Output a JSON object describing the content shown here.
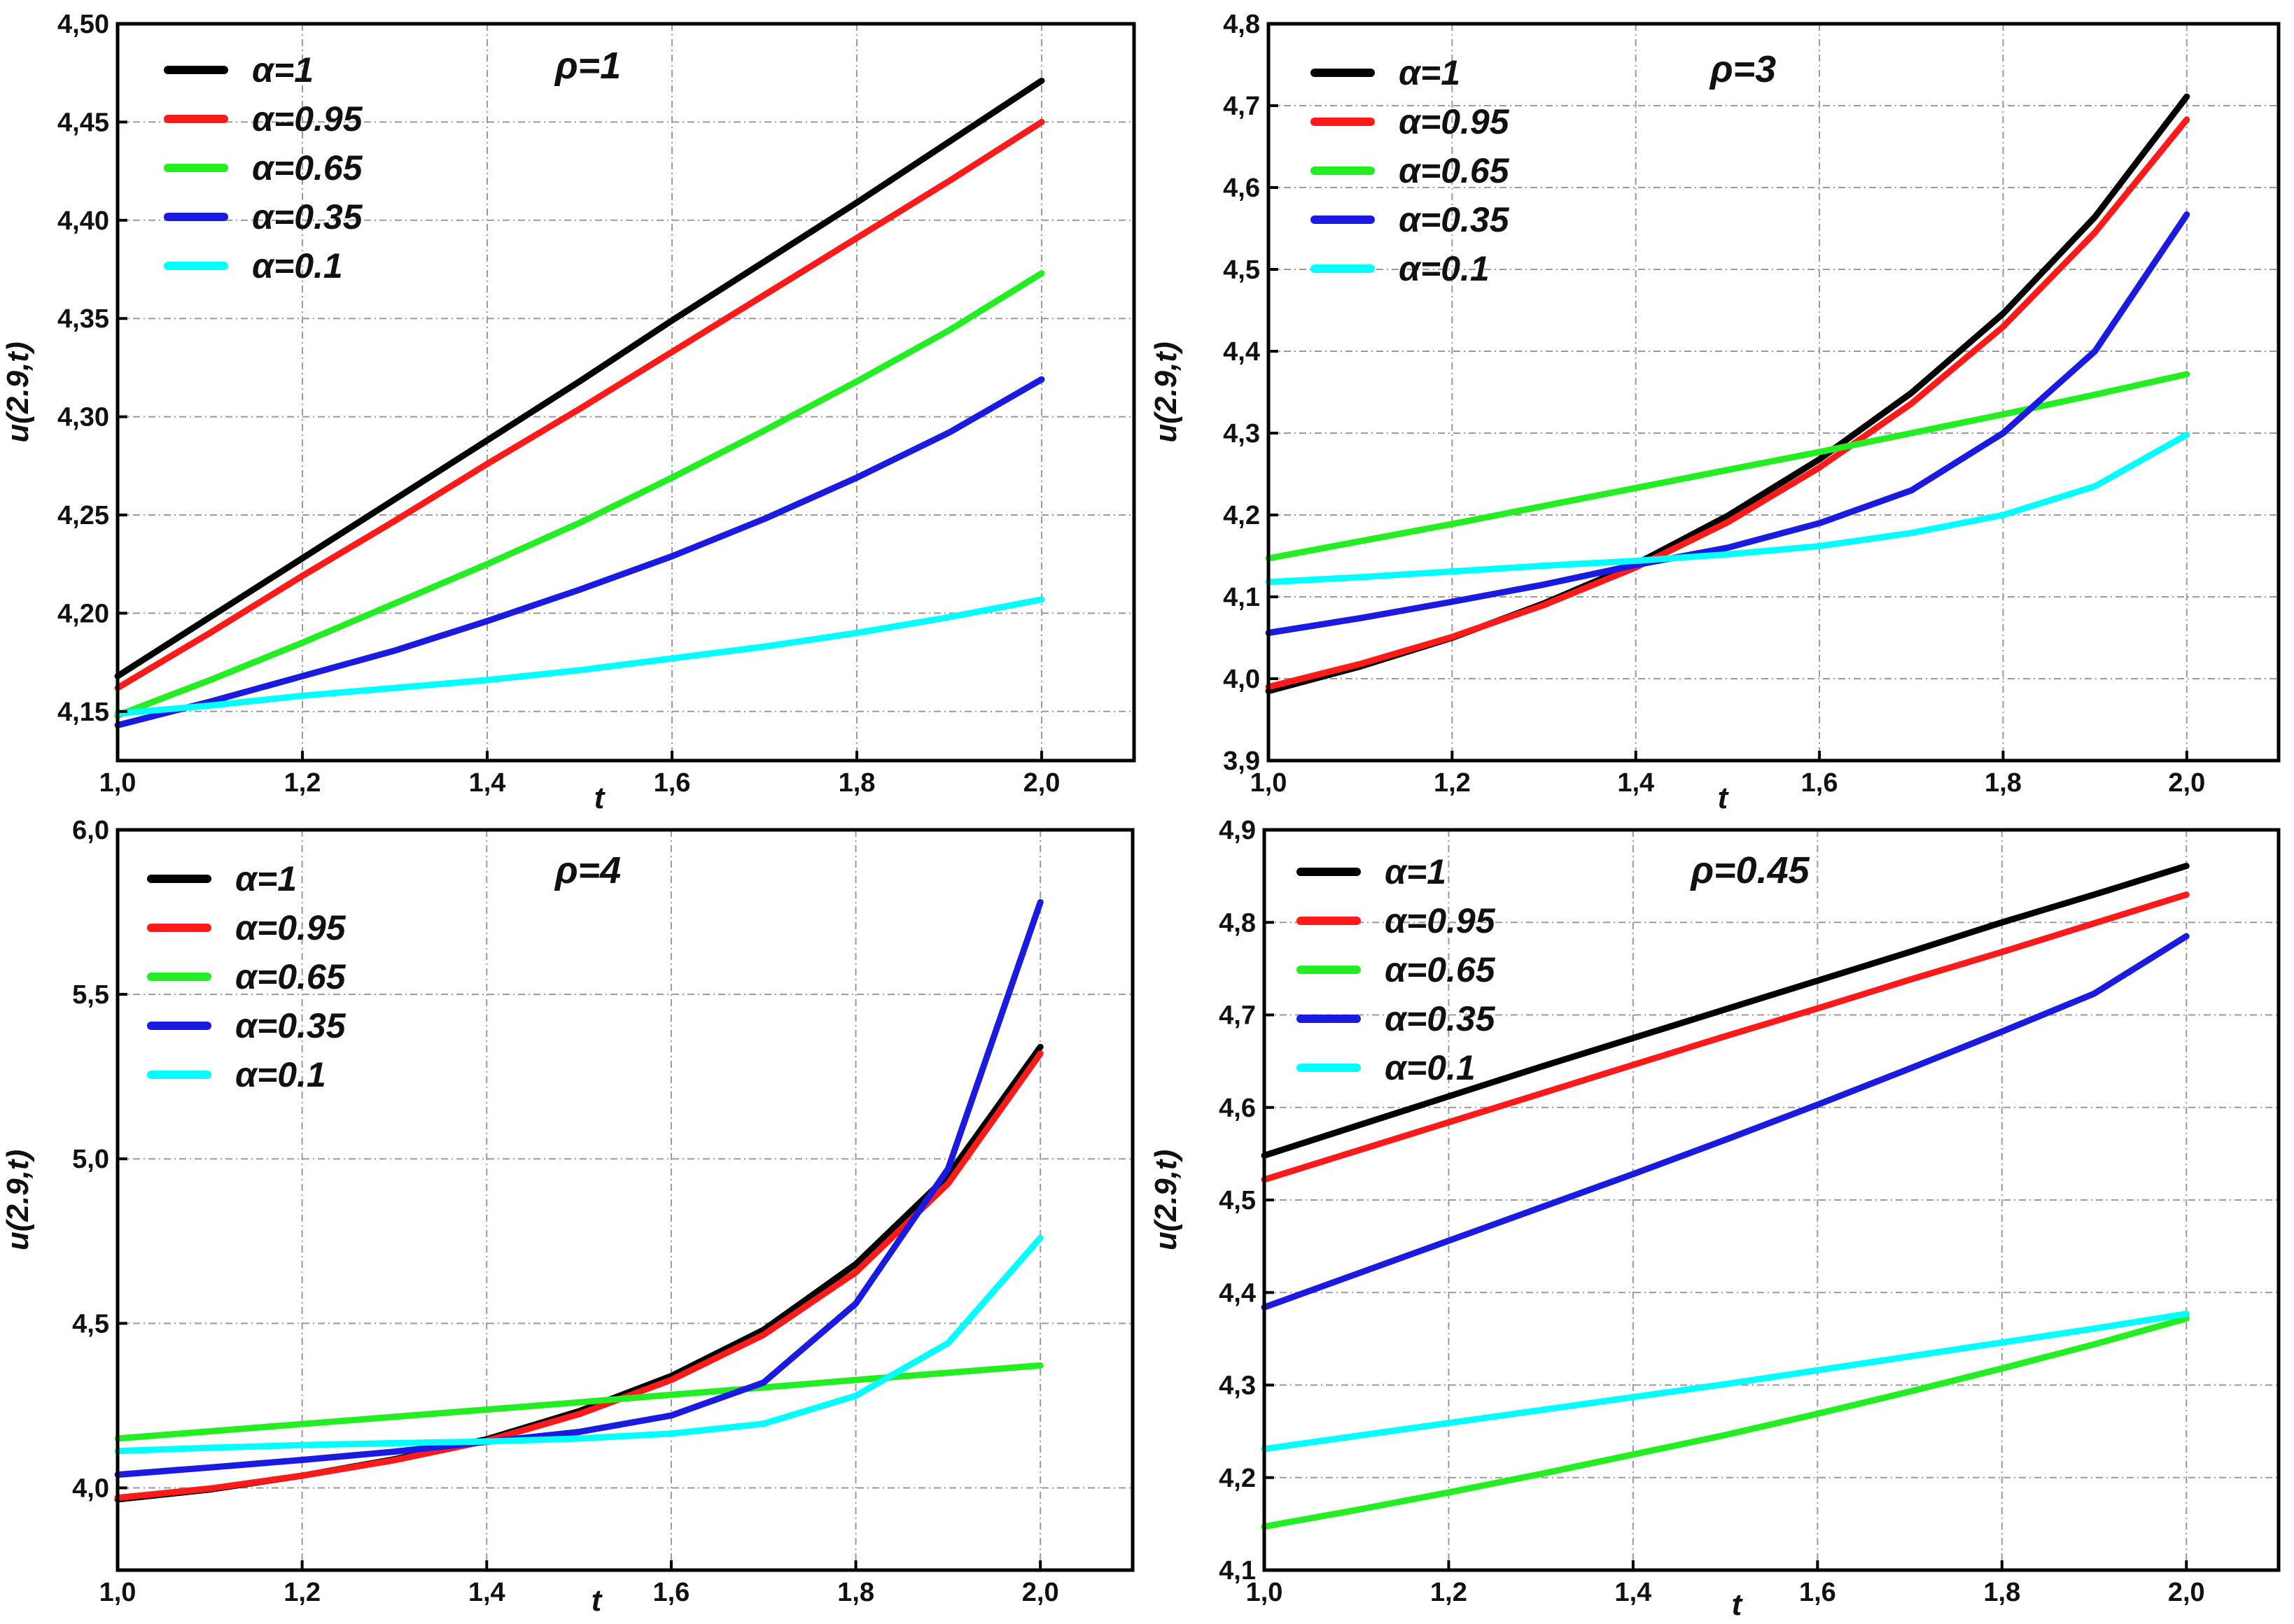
{
  "chart_data": [
    {
      "type": "line",
      "title": "ρ=1",
      "xlabel": "t",
      "ylabel": "u(2.9,t)",
      "xlim": [
        1.0,
        2.1
      ],
      "ylim": [
        4.125,
        4.5
      ],
      "xticks": [
        1.0,
        1.2,
        1.4,
        1.6,
        1.8,
        2.0
      ],
      "xtick_labels": [
        "1,0",
        "1,2",
        "1,4",
        "1,6",
        "1,8",
        "2,0"
      ],
      "yticks": [
        4.15,
        4.2,
        4.25,
        4.3,
        4.35,
        4.4,
        4.45,
        4.5
      ],
      "ytick_labels": [
        "4,15",
        "4,20",
        "4,25",
        "4,30",
        "4,35",
        "4,40",
        "4,45",
        "4,50"
      ],
      "legend_position": "top-left",
      "x": [
        1.0,
        1.1,
        1.2,
        1.3,
        1.4,
        1.5,
        1.6,
        1.7,
        1.8,
        1.9,
        2.0
      ],
      "series": [
        {
          "name": "α=1",
          "color": "#000000",
          "values": [
            4.168,
            4.198,
            4.228,
            4.258,
            4.288,
            4.318,
            4.349,
            4.379,
            4.409,
            4.44,
            4.471
          ]
        },
        {
          "name": "α=0.95",
          "color": "#ff1a1a",
          "values": [
            4.162,
            4.19,
            4.219,
            4.247,
            4.276,
            4.304,
            4.333,
            4.362,
            4.391,
            4.42,
            4.45
          ]
        },
        {
          "name": "α=0.65",
          "color": "#22ee22",
          "values": [
            4.148,
            4.166,
            4.185,
            4.205,
            4.225,
            4.246,
            4.269,
            4.293,
            4.318,
            4.344,
            4.373
          ]
        },
        {
          "name": "α=0.35",
          "color": "#1a1ae0",
          "values": [
            4.143,
            4.155,
            4.168,
            4.181,
            4.196,
            4.212,
            4.229,
            4.248,
            4.269,
            4.292,
            4.319
          ]
        },
        {
          "name": "α=0.1",
          "color": "#00ffff",
          "values": [
            4.149,
            4.153,
            4.158,
            4.162,
            4.166,
            4.171,
            4.177,
            4.183,
            4.19,
            4.198,
            4.207
          ]
        }
      ]
    },
    {
      "type": "line",
      "title": "ρ=3",
      "xlabel": "t",
      "ylabel": "u(2.9,t)",
      "xlim": [
        1.0,
        2.1
      ],
      "ylim": [
        3.9,
        4.8
      ],
      "xticks": [
        1.0,
        1.2,
        1.4,
        1.6,
        1.8,
        2.0
      ],
      "xtick_labels": [
        "1,0",
        "1,2",
        "1,4",
        "1,6",
        "1,8",
        "2,0"
      ],
      "yticks": [
        3.9,
        4.0,
        4.1,
        4.2,
        4.3,
        4.4,
        4.5,
        4.6,
        4.7,
        4.8
      ],
      "ytick_labels": [
        "3,9",
        "4,0",
        "4,1",
        "4,2",
        "4,3",
        "4,4",
        "4,5",
        "4,6",
        "4,7",
        "4,8"
      ],
      "legend_position": "top-left",
      "x": [
        1.0,
        1.1,
        1.2,
        1.3,
        1.4,
        1.5,
        1.6,
        1.7,
        1.8,
        1.9,
        2.0
      ],
      "series": [
        {
          "name": "α=1",
          "color": "#000000",
          "values": [
            3.985,
            4.015,
            4.05,
            4.092,
            4.14,
            4.199,
            4.268,
            4.349,
            4.446,
            4.564,
            4.711
          ]
        },
        {
          "name": "α=0.95",
          "color": "#ff1a1a",
          "values": [
            3.99,
            4.018,
            4.051,
            4.09,
            4.136,
            4.191,
            4.258,
            4.336,
            4.43,
            4.545,
            4.683
          ]
        },
        {
          "name": "α=0.65",
          "color": "#22ee22",
          "values": [
            4.147,
            4.168,
            4.189,
            4.211,
            4.233,
            4.255,
            4.277,
            4.3,
            4.323,
            4.347,
            4.372
          ]
        },
        {
          "name": "α=0.35",
          "color": "#1a1ae0",
          "values": [
            4.056,
            4.074,
            4.094,
            4.115,
            4.139,
            4.16,
            4.19,
            4.23,
            4.3,
            4.4,
            4.567
          ]
        },
        {
          "name": "α=0.1",
          "color": "#00ffff",
          "values": [
            4.118,
            4.124,
            4.131,
            4.138,
            4.144,
            4.152,
            4.162,
            4.178,
            4.2,
            4.235,
            4.298
          ]
        }
      ]
    },
    {
      "type": "line",
      "title": "ρ=4",
      "xlabel": "t",
      "ylabel": "u(2.9,t)",
      "xlim": [
        1.0,
        2.1
      ],
      "ylim": [
        3.75,
        6.0
      ],
      "xticks": [
        1.0,
        1.2,
        1.4,
        1.6,
        1.8,
        2.0
      ],
      "xtick_labels": [
        "1,0",
        "1,2",
        "1,4",
        "1,6",
        "1,8",
        "2,0"
      ],
      "yticks": [
        4.0,
        4.5,
        5.0,
        5.5,
        6.0
      ],
      "ytick_labels": [
        "4,0",
        "4,5",
        "5,0",
        "5,5",
        "6,0"
      ],
      "legend_position": "top-left",
      "x": [
        1.0,
        1.1,
        1.2,
        1.3,
        1.4,
        1.5,
        1.6,
        1.7,
        1.8,
        1.9,
        2.0
      ],
      "series": [
        {
          "name": "α=1",
          "color": "#000000",
          "values": [
            3.965,
            3.995,
            4.037,
            4.087,
            4.148,
            4.233,
            4.34,
            4.48,
            4.68,
            4.95,
            5.34
          ]
        },
        {
          "name": "α=0.95",
          "color": "#ff1a1a",
          "values": [
            3.97,
            3.998,
            4.037,
            4.084,
            4.143,
            4.224,
            4.328,
            4.465,
            4.655,
            4.925,
            5.32
          ]
        },
        {
          "name": "α=0.65",
          "color": "#22ee22",
          "values": [
            4.15,
            4.172,
            4.194,
            4.216,
            4.238,
            4.26,
            4.283,
            4.305,
            4.328,
            4.35,
            4.372
          ]
        },
        {
          "name": "α=0.35",
          "color": "#1a1ae0",
          "values": [
            4.04,
            4.062,
            4.085,
            4.11,
            4.14,
            4.17,
            4.22,
            4.32,
            4.56,
            4.97,
            5.78
          ]
        },
        {
          "name": "α=0.1",
          "color": "#00ffff",
          "values": [
            4.112,
            4.122,
            4.13,
            4.136,
            4.141,
            4.15,
            4.165,
            4.195,
            4.28,
            4.44,
            4.76
          ]
        }
      ]
    },
    {
      "type": "line",
      "title": "ρ=0.45",
      "xlabel": "t",
      "ylabel": "u(2.9,t)",
      "xlim": [
        1.0,
        2.1
      ],
      "ylim": [
        4.1,
        4.9
      ],
      "xticks": [
        1.0,
        1.2,
        1.4,
        1.6,
        1.8,
        2.0
      ],
      "xtick_labels": [
        "1,0",
        "1,2",
        "1,4",
        "1,6",
        "1,8",
        "2,0"
      ],
      "yticks": [
        4.1,
        4.2,
        4.3,
        4.4,
        4.5,
        4.6,
        4.7,
        4.8,
        4.9
      ],
      "ytick_labels": [
        "4,1",
        "4,2",
        "4,3",
        "4,4",
        "4,5",
        "4,6",
        "4,7",
        "4,8",
        "4,9"
      ],
      "legend_position": "top-left",
      "x": [
        1.0,
        1.1,
        1.2,
        1.3,
        1.4,
        1.5,
        1.6,
        1.7,
        1.8,
        1.9,
        2.0
      ],
      "series": [
        {
          "name": "α=1",
          "color": "#000000",
          "values": [
            4.548,
            4.58,
            4.612,
            4.644,
            4.675,
            4.706,
            4.737,
            4.768,
            4.8,
            4.83,
            4.861
          ]
        },
        {
          "name": "α=0.95",
          "color": "#ff1a1a",
          "values": [
            4.522,
            4.553,
            4.584,
            4.615,
            4.646,
            4.677,
            4.707,
            4.738,
            4.768,
            4.799,
            4.83
          ]
        },
        {
          "name": "α=0.65",
          "color": "#22ee22",
          "values": [
            4.147,
            4.165,
            4.184,
            4.204,
            4.225,
            4.246,
            4.269,
            4.293,
            4.318,
            4.344,
            4.372
          ]
        },
        {
          "name": "α=0.35",
          "color": "#1a1ae0",
          "values": [
            4.384,
            4.42,
            4.456,
            4.492,
            4.528,
            4.565,
            4.603,
            4.642,
            4.682,
            4.723,
            4.785
          ]
        },
        {
          "name": "α=0.1",
          "color": "#00ffff",
          "values": [
            4.231,
            4.245,
            4.259,
            4.273,
            4.287,
            4.301,
            4.316,
            4.331,
            4.346,
            4.361,
            4.377
          ]
        }
      ]
    }
  ]
}
